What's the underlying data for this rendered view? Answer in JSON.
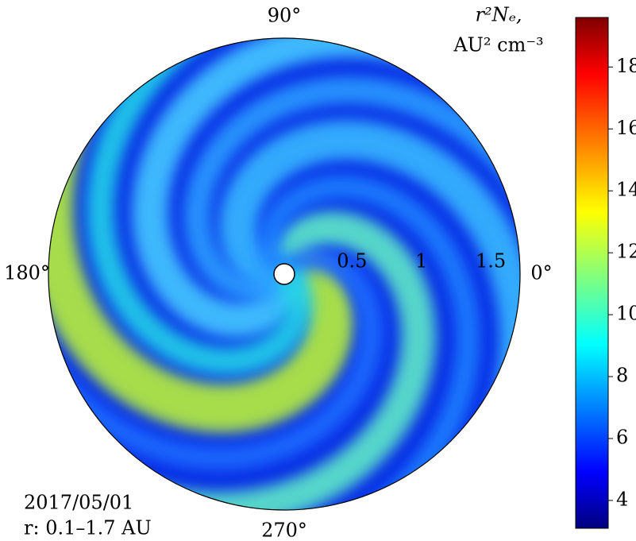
{
  "chart_data": {
    "type": "polar_heatmap",
    "colorbar_label": [
      "r²Nₑ,",
      "AU² cm⁻³"
    ],
    "annotations": [
      "2017/05/01",
      "r: 0.1–1.7 AU"
    ],
    "rlim": [
      0,
      1.7
    ],
    "rticks": [
      0.5,
      1.0,
      1.5
    ],
    "thetaticks": [
      {
        "value": 0,
        "label": "0°"
      },
      {
        "value": 90,
        "label": "90°"
      },
      {
        "value": 180,
        "label": "180°"
      },
      {
        "value": 270,
        "label": "270°"
      }
    ],
    "clim": [
      3.1,
      19.6
    ],
    "cticks": [
      4,
      6,
      8,
      10,
      12,
      14,
      16,
      18
    ],
    "colormap": "jet"
  }
}
